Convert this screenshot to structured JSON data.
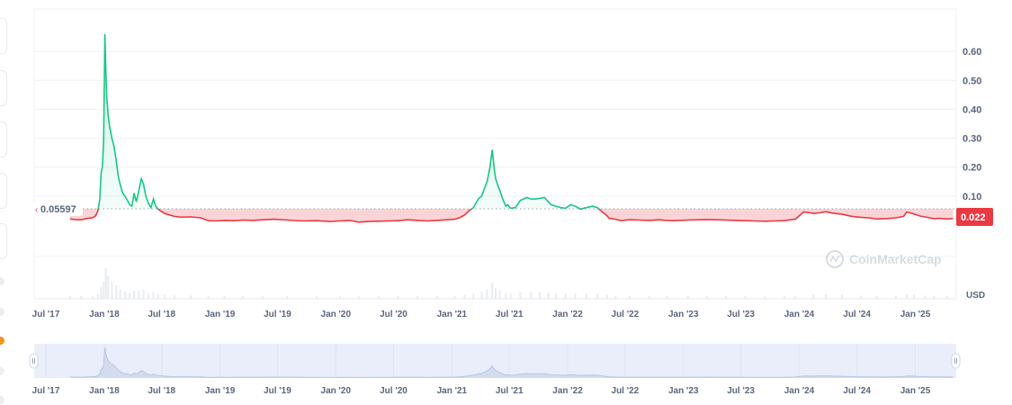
{
  "chart_data": {
    "type": "area",
    "title": "",
    "y_unit": "USD",
    "ylim": [
      0,
      0.7
    ],
    "y_ticks": [
      "0.10",
      "0.20",
      "0.30",
      "0.40",
      "0.50",
      "0.60"
    ],
    "x_ticks": [
      "Jul '17",
      "Jan '18",
      "Jul '18",
      "Jan '19",
      "Jul '19",
      "Jan '20",
      "Jul '20",
      "Jan '21",
      "Jul '21",
      "Jan '22",
      "Jul '22",
      "Jan '23",
      "Jul '23",
      "Jan '24",
      "Jul '24",
      "Jan '25"
    ],
    "reference_price": 0.05597,
    "reference_label": "0.05597",
    "current_price_label": "0.022",
    "watermark": "CoinMarketCap",
    "colors": {
      "up": "#16c784",
      "down": "#ea3943",
      "neutral": "#58667e",
      "navigator": "#e9eefa"
    },
    "series": [
      {
        "x": [
          "2017-09-15",
          "2017-10-01",
          "2017-10-20",
          "2017-11-10",
          "2017-11-25",
          "2017-12-05",
          "2017-12-12",
          "2017-12-18",
          "2017-12-22",
          "2017-12-26",
          "2017-12-30",
          "2018-01-03",
          "2018-01-06",
          "2018-01-09",
          "2018-01-13",
          "2018-01-18",
          "2018-01-25",
          "2018-02-01",
          "2018-02-08",
          "2018-02-14",
          "2018-02-20",
          "2018-02-28",
          "2018-03-08",
          "2018-03-15",
          "2018-03-22",
          "2018-03-29",
          "2018-04-05",
          "2018-04-12",
          "2018-04-20",
          "2018-04-28",
          "2018-05-05",
          "2018-05-12",
          "2018-05-20",
          "2018-05-28",
          "2018-06-05",
          "2018-06-12",
          "2018-06-20",
          "2018-06-28",
          "2018-07-10",
          "2018-07-25",
          "2018-08-10",
          "2018-09-01",
          "2018-10-01",
          "2018-11-01",
          "2018-11-25",
          "2018-12-15",
          "2019-01-15",
          "2019-02-15",
          "2019-03-15",
          "2019-04-15",
          "2019-05-15",
          "2019-06-20",
          "2019-08-01",
          "2019-09-15",
          "2019-11-01",
          "2019-12-15",
          "2020-01-15",
          "2020-02-15",
          "2020-03-13",
          "2020-04-15",
          "2020-05-15",
          "2020-06-15",
          "2020-07-15",
          "2020-08-15",
          "2020-09-15",
          "2020-10-15",
          "2020-11-15",
          "2020-12-15",
          "2021-01-10",
          "2021-01-25",
          "2021-02-10",
          "2021-02-25",
          "2021-03-10",
          "2021-03-25",
          "2021-04-05",
          "2021-04-15",
          "2021-04-22",
          "2021-05-01",
          "2021-05-08",
          "2021-05-15",
          "2021-05-19",
          "2021-05-25",
          "2021-06-01",
          "2021-06-10",
          "2021-06-20",
          "2021-06-26",
          "2021-07-05",
          "2021-07-20",
          "2021-08-05",
          "2021-08-25",
          "2021-09-07",
          "2021-09-20",
          "2021-10-05",
          "2021-10-20",
          "2021-11-01",
          "2021-11-10",
          "2021-11-25",
          "2021-12-10",
          "2021-12-25",
          "2022-01-10",
          "2022-01-25",
          "2022-02-10",
          "2022-03-01",
          "2022-03-20",
          "2022-04-05",
          "2022-04-20",
          "2022-05-05",
          "2022-05-12",
          "2022-06-01",
          "2022-06-18",
          "2022-07-15",
          "2022-08-15",
          "2022-09-15",
          "2022-10-15",
          "2022-11-10",
          "2022-12-01",
          "2023-01-15",
          "2023-02-15",
          "2023-03-15",
          "2023-04-15",
          "2023-05-15",
          "2023-06-15",
          "2023-07-15",
          "2023-08-15",
          "2023-09-15",
          "2023-10-15",
          "2023-11-15",
          "2023-12-05",
          "2023-12-20",
          "2024-01-15",
          "2024-02-15",
          "2024-03-05",
          "2024-03-25",
          "2024-04-15",
          "2024-05-15",
          "2024-06-15",
          "2024-07-15",
          "2024-08-05",
          "2024-09-01",
          "2024-10-01",
          "2024-11-01",
          "2024-11-25",
          "2024-12-05",
          "2024-12-15",
          "2024-12-28",
          "2025-01-15",
          "2025-02-01",
          "2025-02-15",
          "2025-03-01",
          "2025-03-20",
          "2025-04-10",
          "2025-04-30"
        ],
        "y": [
          0.021,
          0.019,
          0.018,
          0.023,
          0.025,
          0.032,
          0.05,
          0.09,
          0.18,
          0.2,
          0.29,
          0.66,
          0.53,
          0.44,
          0.38,
          0.34,
          0.3,
          0.27,
          0.22,
          0.17,
          0.14,
          0.11,
          0.098,
          0.085,
          0.07,
          0.065,
          0.11,
          0.08,
          0.12,
          0.16,
          0.14,
          0.1,
          0.075,
          0.06,
          0.09,
          0.065,
          0.055,
          0.048,
          0.04,
          0.035,
          0.03,
          0.027,
          0.028,
          0.025,
          0.015,
          0.014,
          0.016,
          0.015,
          0.017,
          0.016,
          0.018,
          0.02,
          0.017,
          0.014,
          0.015,
          0.012,
          0.014,
          0.016,
          0.01,
          0.012,
          0.013,
          0.014,
          0.015,
          0.018,
          0.016,
          0.014,
          0.016,
          0.018,
          0.02,
          0.025,
          0.035,
          0.05,
          0.06,
          0.09,
          0.1,
          0.13,
          0.15,
          0.2,
          0.26,
          0.19,
          0.16,
          0.14,
          0.12,
          0.09,
          0.065,
          0.07,
          0.058,
          0.06,
          0.085,
          0.095,
          0.09,
          0.09,
          0.092,
          0.095,
          0.08,
          0.07,
          0.065,
          0.06,
          0.058,
          0.07,
          0.065,
          0.055,
          0.06,
          0.065,
          0.06,
          0.045,
          0.032,
          0.023,
          0.02,
          0.015,
          0.018,
          0.017,
          0.016,
          0.018,
          0.016,
          0.015,
          0.017,
          0.018,
          0.019,
          0.018,
          0.017,
          0.016,
          0.015,
          0.014,
          0.013,
          0.014,
          0.015,
          0.018,
          0.02,
          0.045,
          0.04,
          0.042,
          0.046,
          0.041,
          0.037,
          0.03,
          0.026,
          0.025,
          0.021,
          0.022,
          0.025,
          0.03,
          0.045,
          0.042,
          0.038,
          0.031,
          0.028,
          0.025,
          0.022,
          0.023,
          0.021,
          0.022
        ]
      }
    ]
  }
}
